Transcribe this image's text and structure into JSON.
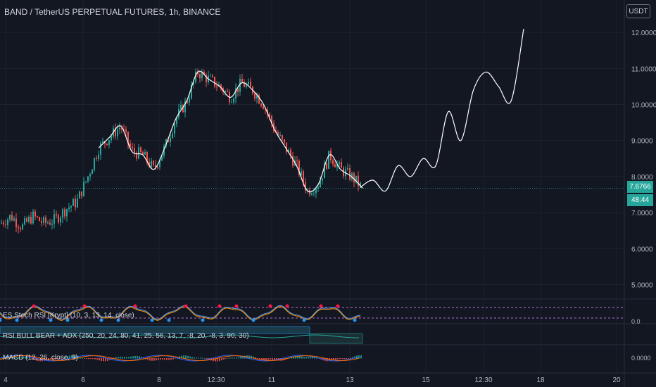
{
  "header": {
    "title": "BAND / TetherUS PERPETUAL FUTURES, 1h, BINANCE",
    "currency_button": "USDT"
  },
  "price_badges": {
    "last_price": "7.6766",
    "countdown": "48:44"
  },
  "indicators": [
    {
      "label": "ES Stoch RSI [Krypt] (10, 3, 13, 14, close)"
    },
    {
      "label": "RSI BULL BEAR + ADX (250, 20, 24, 80, 41, 25, 56, 13, 7, -8, 20, -8, 3, 90, 30)"
    },
    {
      "label": "MACD (12, 26, close, 9)"
    }
  ],
  "indicator_axis": {
    "stoch_zero": "0.0",
    "macd_zero": "0.0000"
  },
  "colors": {
    "background": "#131722",
    "grid": "#1e222d",
    "up": "#26a69a",
    "down": "#ef5350",
    "price_line": "#26a69a",
    "projection": "#ffffff",
    "stoch_dot_high": "#ff1744",
    "stoch_dot_low": "#2196f3"
  },
  "chart_data": {
    "type": "line",
    "x_tick_labels": [
      "4",
      "6",
      "8",
      "12:30",
      "11",
      "13",
      "15",
      "12:30",
      "18",
      "20"
    ],
    "y_tick_labels": [
      "12.0000",
      "11.0000",
      "10.0000",
      "9.0000",
      "8.0000",
      "7.0000",
      "6.0000",
      "5.0000"
    ],
    "ylim": [
      4.6,
      12.9
    ],
    "series": [
      {
        "values": [
          6.7,
          6.9,
          6.6,
          6.9,
          6.7,
          6.8,
          7.1,
          7.3,
          8.0,
          8.8,
          9.1,
          9.4,
          8.7,
          8.6,
          8.2,
          8.8,
          9.6,
          10.1,
          10.9,
          10.7,
          10.5,
          10.2,
          10.6,
          10.4,
          10.0,
          9.3,
          8.8,
          8.3,
          7.6,
          7.8,
          8.6,
          8.2,
          8.0,
          7.68
        ]
      },
      {
        "values": [
          7.7,
          7.9,
          7.6,
          8.3,
          8.0,
          8.5,
          8.3,
          9.8,
          9.0,
          10.4,
          10.9,
          10.5,
          10.1,
          12.1
        ]
      }
    ]
  }
}
